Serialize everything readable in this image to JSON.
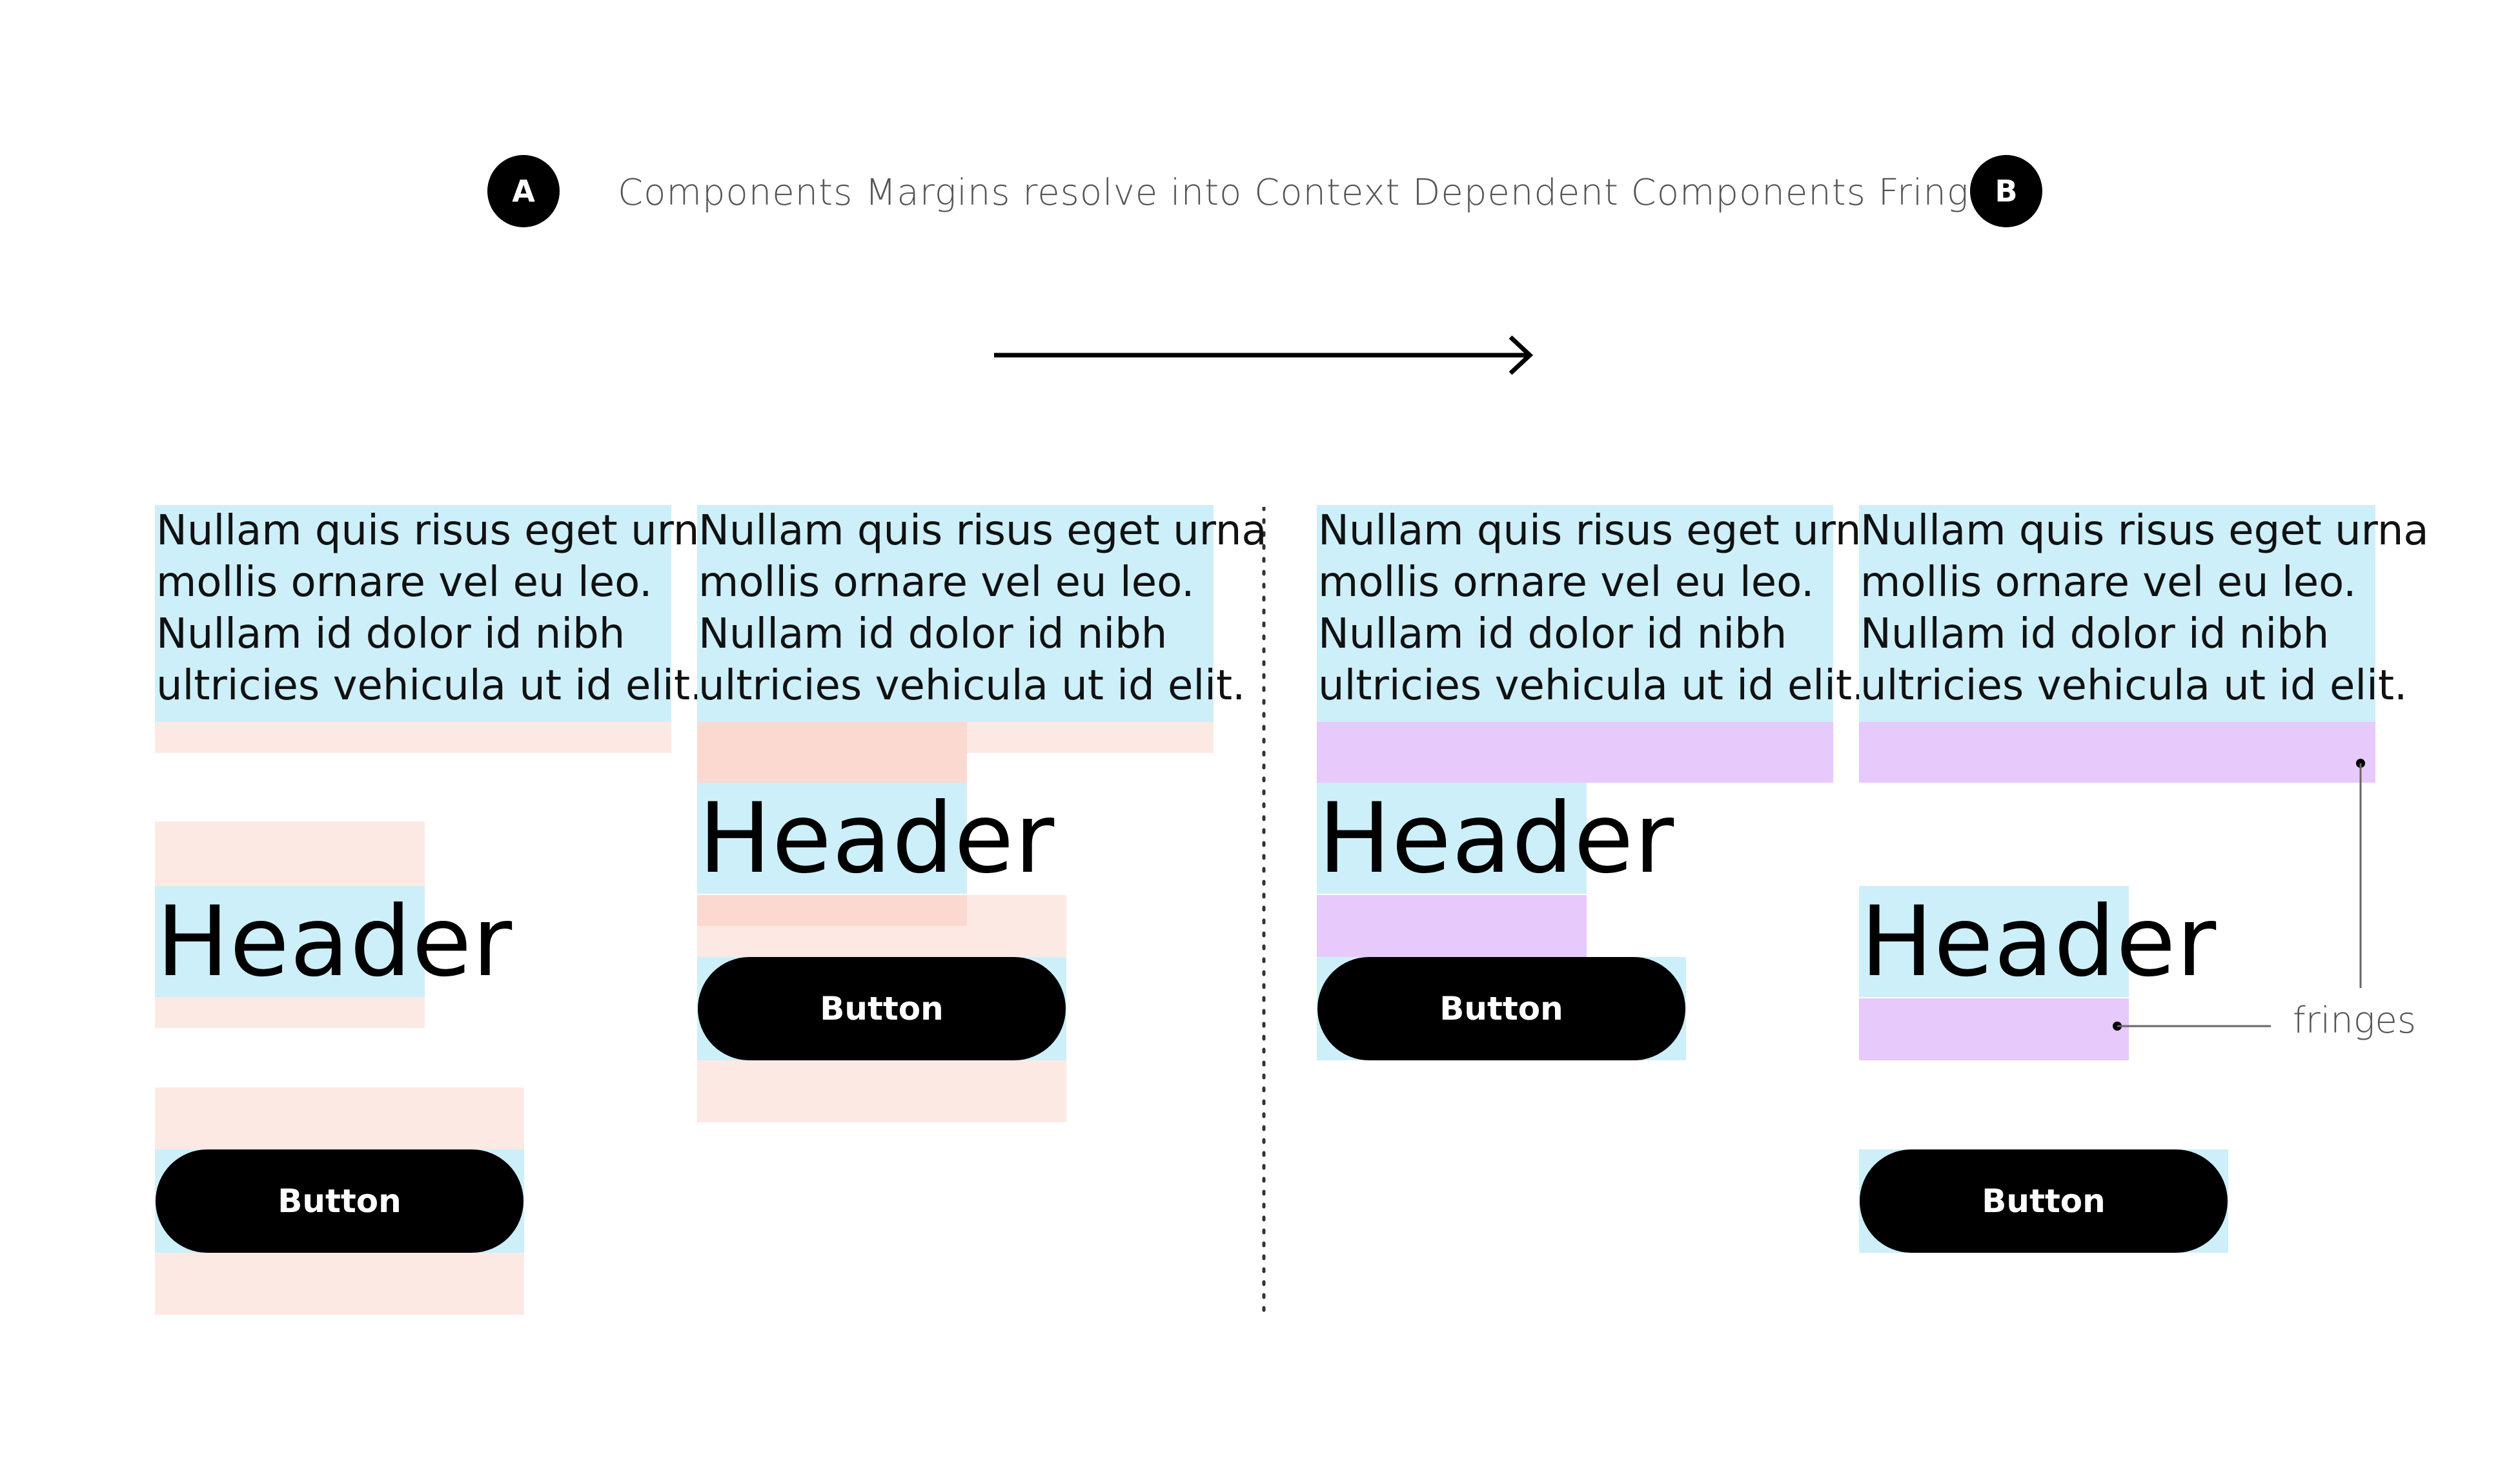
{
  "badges": {
    "a": "A",
    "b": "B"
  },
  "caption": "Components Margins resolve into Context Dependent Components Fringes",
  "paragraph": {
    "lines": [
      "Nullam quis risus eget urna",
      "mollis ornare vel eu leo.",
      "Nullam id dolor id nibh",
      "ultricies vehicula ut id elit."
    ]
  },
  "header_text": "Header",
  "button_label": "Button",
  "annotation": "fringes",
  "colors": {
    "content": "#cdeffa",
    "margin": "#fde9e3",
    "margin_overlap": "#fcd9d0",
    "fringe": "#e7c9fb"
  }
}
